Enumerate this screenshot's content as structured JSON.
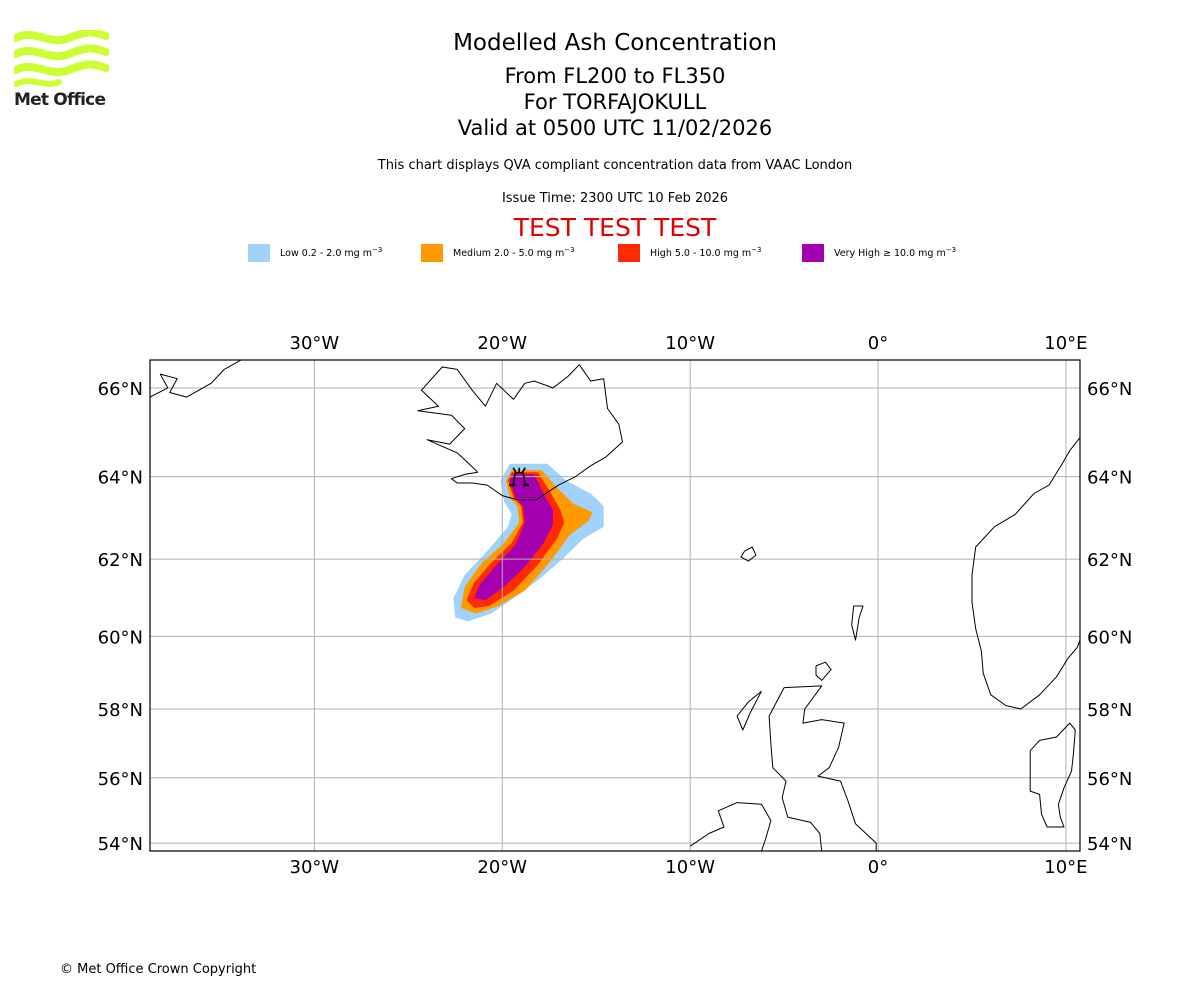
{
  "logo": {
    "text": "Met Office",
    "color": "#ccff33"
  },
  "header": {
    "title": "Modelled Ash Concentration",
    "levels": "From FL200 to FL350",
    "volcano": "For TORFAJOKULL",
    "valid": "Valid at 0500 UTC 11/02/2026",
    "description": "This chart displays QVA compliant concentration data from VAAC London",
    "issue_time": "Issue Time: 2300 UTC 10 Feb 2026",
    "test_banner": "TEST TEST TEST"
  },
  "legend": [
    {
      "name": "Low",
      "range": "Low 0.2 - 2.0 mg m",
      "unit_exp": "−3",
      "color": "#a0d2fa"
    },
    {
      "name": "Medium",
      "range": "Medium 2.0 - 5.0 mg m",
      "unit_exp": "−3",
      "color": "#ff9900"
    },
    {
      "name": "High",
      "range": "High 5.0 - 10.0 mg m",
      "unit_exp": "−3",
      "color": "#ff2a00"
    },
    {
      "name": "Very High",
      "range": "Very High  ≥  10.0 mg m",
      "unit_exp": "−3",
      "color": "#a500b0"
    }
  ],
  "footer": {
    "copyright": "© Met Office Crown Copyright"
  },
  "chart_data": {
    "type": "map",
    "projection": "mercator",
    "extent": {
      "lon": [
        -38.75,
        10.75
      ],
      "lat": [
        53.75,
        66.6
      ]
    },
    "grid": true,
    "x_ticks": [
      {
        "value": -30,
        "label": "30°W"
      },
      {
        "value": -20,
        "label": "20°W"
      },
      {
        "value": -10,
        "label": "10°W"
      },
      {
        "value": 0,
        "label": "0°"
      },
      {
        "value": 10,
        "label": "10°E"
      }
    ],
    "y_ticks": [
      {
        "value": 66,
        "label": "66°N"
      },
      {
        "value": 64,
        "label": "64°N"
      },
      {
        "value": 62,
        "label": "62°N"
      },
      {
        "value": 60,
        "label": "60°N"
      },
      {
        "value": 58,
        "label": "58°N"
      },
      {
        "value": 56,
        "label": "56°N"
      },
      {
        "value": 54,
        "label": "54°N"
      }
    ],
    "volcano": {
      "name": "TORFAJOKULL",
      "lon": -19.1,
      "lat": 63.9,
      "symbol": "volcano-icon"
    },
    "ash_levels": [
      {
        "level": "Low",
        "color": "#a0d2fa",
        "polygon": [
          [
            -19.6,
            64.3
          ],
          [
            -17.6,
            64.3
          ],
          [
            -16.6,
            63.9
          ],
          [
            -15.3,
            63.6
          ],
          [
            -14.6,
            63.3
          ],
          [
            -14.6,
            62.8
          ],
          [
            -15.7,
            62.5
          ],
          [
            -16.8,
            62.0
          ],
          [
            -18.0,
            61.5
          ],
          [
            -19.4,
            61.0
          ],
          [
            -20.6,
            60.6
          ],
          [
            -21.8,
            60.4
          ],
          [
            -22.5,
            60.5
          ],
          [
            -22.6,
            61.0
          ],
          [
            -22.0,
            61.6
          ],
          [
            -20.8,
            62.2
          ],
          [
            -19.7,
            62.8
          ],
          [
            -19.5,
            63.1
          ],
          [
            -19.9,
            63.4
          ],
          [
            -20.1,
            63.9
          ]
        ]
      },
      {
        "level": "Medium",
        "color": "#ff9900",
        "polygon": [
          [
            -19.5,
            64.15
          ],
          [
            -17.9,
            64.15
          ],
          [
            -17.0,
            63.7
          ],
          [
            -16.2,
            63.35
          ],
          [
            -15.2,
            63.15
          ],
          [
            -15.4,
            62.95
          ],
          [
            -16.4,
            62.6
          ],
          [
            -17.5,
            61.9
          ],
          [
            -18.8,
            61.2
          ],
          [
            -20.2,
            60.8
          ],
          [
            -21.4,
            60.6
          ],
          [
            -22.2,
            60.75
          ],
          [
            -22.0,
            61.3
          ],
          [
            -21.1,
            61.9
          ],
          [
            -19.9,
            62.4
          ],
          [
            -19.1,
            62.9
          ],
          [
            -19.2,
            63.3
          ],
          [
            -19.6,
            63.5
          ],
          [
            -19.8,
            63.9
          ]
        ]
      },
      {
        "level": "High",
        "color": "#ff2a00",
        "polygon": [
          [
            -19.5,
            64.1
          ],
          [
            -18.1,
            64.1
          ],
          [
            -17.4,
            63.6
          ],
          [
            -16.9,
            63.2
          ],
          [
            -16.7,
            62.9
          ],
          [
            -17.1,
            62.5
          ],
          [
            -18.2,
            61.8
          ],
          [
            -19.4,
            61.2
          ],
          [
            -20.7,
            60.8
          ],
          [
            -21.5,
            60.75
          ],
          [
            -21.9,
            60.95
          ],
          [
            -21.5,
            61.4
          ],
          [
            -20.6,
            61.9
          ],
          [
            -19.5,
            62.4
          ],
          [
            -18.9,
            62.9
          ],
          [
            -19.0,
            63.3
          ],
          [
            -19.4,
            63.5
          ],
          [
            -19.7,
            63.9
          ]
        ]
      },
      {
        "level": "Very High",
        "color": "#a500b0",
        "polygon": [
          [
            -19.4,
            64.05
          ],
          [
            -18.3,
            64.05
          ],
          [
            -17.8,
            63.6
          ],
          [
            -17.3,
            63.2
          ],
          [
            -17.3,
            62.85
          ],
          [
            -17.8,
            62.4
          ],
          [
            -18.8,
            61.8
          ],
          [
            -19.9,
            61.3
          ],
          [
            -20.9,
            60.95
          ],
          [
            -21.5,
            61.0
          ],
          [
            -21.2,
            61.35
          ],
          [
            -20.3,
            61.85
          ],
          [
            -19.3,
            62.35
          ],
          [
            -18.8,
            62.9
          ],
          [
            -18.9,
            63.3
          ],
          [
            -19.3,
            63.5
          ],
          [
            -19.6,
            63.9
          ]
        ]
      }
    ],
    "coastlines": [
      {
        "name": "Iceland",
        "points": [
          [
            -21.3,
            64.1
          ],
          [
            -22.0,
            64.05
          ],
          [
            -22.7,
            63.95
          ],
          [
            -22.4,
            63.85
          ],
          [
            -21.6,
            63.85
          ],
          [
            -20.8,
            63.8
          ],
          [
            -20.0,
            63.55
          ],
          [
            -19.2,
            63.45
          ],
          [
            -18.2,
            63.45
          ],
          [
            -17.0,
            63.8
          ],
          [
            -16.1,
            64.0
          ],
          [
            -15.3,
            64.25
          ],
          [
            -14.5,
            64.45
          ],
          [
            -13.6,
            64.8
          ],
          [
            -13.8,
            65.2
          ],
          [
            -14.4,
            65.55
          ],
          [
            -14.6,
            66.2
          ],
          [
            -15.3,
            66.15
          ],
          [
            -15.9,
            66.5
          ],
          [
            -16.5,
            66.25
          ],
          [
            -17.3,
            66.0
          ],
          [
            -18.3,
            66.15
          ],
          [
            -18.8,
            66.1
          ],
          [
            -19.4,
            65.75
          ],
          [
            -20.3,
            66.1
          ],
          [
            -20.9,
            65.6
          ],
          [
            -21.6,
            65.95
          ],
          [
            -22.4,
            66.4
          ],
          [
            -23.2,
            66.45
          ],
          [
            -24.3,
            65.95
          ],
          [
            -23.4,
            65.6
          ],
          [
            -24.5,
            65.5
          ],
          [
            -22.7,
            65.4
          ],
          [
            -22.0,
            65.1
          ],
          [
            -22.8,
            64.75
          ],
          [
            -24.0,
            64.85
          ],
          [
            -22.4,
            64.55
          ],
          [
            -21.9,
            64.35
          ],
          [
            -21.3,
            64.1
          ]
        ]
      },
      {
        "name": "Greenland-east",
        "points": [
          [
            -38.75,
            65.8
          ],
          [
            -37.8,
            66.0
          ],
          [
            -38.2,
            66.3
          ],
          [
            -37.3,
            66.2
          ],
          [
            -37.7,
            65.9
          ],
          [
            -36.8,
            65.8
          ],
          [
            -35.5,
            66.1
          ],
          [
            -34.8,
            66.4
          ],
          [
            -33.9,
            66.6
          ]
        ]
      },
      {
        "name": "Faroe",
        "points": [
          [
            -7.1,
            62.2
          ],
          [
            -6.7,
            62.3
          ],
          [
            -6.5,
            62.1
          ],
          [
            -6.9,
            61.95
          ],
          [
            -7.3,
            62.05
          ],
          [
            -7.1,
            62.2
          ]
        ]
      },
      {
        "name": "Shetland",
        "points": [
          [
            -1.3,
            60.8
          ],
          [
            -0.8,
            60.8
          ],
          [
            -1.0,
            60.5
          ],
          [
            -1.2,
            59.9
          ],
          [
            -1.4,
            60.3
          ],
          [
            -1.3,
            60.8
          ]
        ]
      },
      {
        "name": "Orkney",
        "points": [
          [
            -3.3,
            59.2
          ],
          [
            -2.8,
            59.3
          ],
          [
            -2.5,
            59.1
          ],
          [
            -3.0,
            58.8
          ],
          [
            -3.3,
            58.95
          ],
          [
            -3.3,
            59.2
          ]
        ]
      },
      {
        "name": "Scotland-England",
        "points": [
          [
            -5.0,
            58.6
          ],
          [
            -3.0,
            58.65
          ],
          [
            -3.9,
            58.0
          ],
          [
            -4.0,
            57.6
          ],
          [
            -3.0,
            57.7
          ],
          [
            -1.8,
            57.6
          ],
          [
            -2.1,
            56.9
          ],
          [
            -2.6,
            56.3
          ],
          [
            -3.2,
            56.05
          ],
          [
            -2.0,
            55.9
          ],
          [
            -1.6,
            55.3
          ],
          [
            -1.2,
            54.6
          ],
          [
            -0.1,
            54.0
          ],
          [
            -0.1,
            53.75
          ]
        ]
      },
      {
        "name": "Scotland-west",
        "points": [
          [
            -3.0,
            53.75
          ],
          [
            -3.1,
            54.3
          ],
          [
            -3.6,
            54.65
          ],
          [
            -4.8,
            54.8
          ],
          [
            -5.1,
            55.4
          ],
          [
            -4.9,
            55.9
          ],
          [
            -5.6,
            56.3
          ],
          [
            -5.7,
            57.0
          ],
          [
            -5.8,
            57.8
          ],
          [
            -5.0,
            58.6
          ]
        ]
      },
      {
        "name": "Ireland-north",
        "points": [
          [
            -10.0,
            53.9
          ],
          [
            -9.0,
            54.3
          ],
          [
            -8.2,
            54.5
          ],
          [
            -8.5,
            55.0
          ],
          [
            -7.5,
            55.25
          ],
          [
            -6.2,
            55.2
          ],
          [
            -5.7,
            54.7
          ],
          [
            -6.0,
            54.1
          ],
          [
            -6.2,
            53.75
          ]
        ]
      },
      {
        "name": "Outer-Hebrides",
        "points": [
          [
            -6.2,
            58.5
          ],
          [
            -6.9,
            58.2
          ],
          [
            -7.5,
            57.8
          ],
          [
            -7.2,
            57.4
          ],
          [
            -6.8,
            57.9
          ],
          [
            -6.2,
            58.5
          ]
        ]
      },
      {
        "name": "Norway",
        "points": [
          [
            10.75,
            64.9
          ],
          [
            10.2,
            64.6
          ],
          [
            9.8,
            64.3
          ],
          [
            9.1,
            63.8
          ],
          [
            8.3,
            63.6
          ],
          [
            7.3,
            63.1
          ],
          [
            6.2,
            62.8
          ],
          [
            5.2,
            62.3
          ],
          [
            5.0,
            61.6
          ],
          [
            5.0,
            60.9
          ],
          [
            5.2,
            60.2
          ],
          [
            5.5,
            59.6
          ],
          [
            5.6,
            59.0
          ],
          [
            6.0,
            58.4
          ],
          [
            6.8,
            58.1
          ],
          [
            7.6,
            58.0
          ],
          [
            8.6,
            58.4
          ],
          [
            9.5,
            58.9
          ],
          [
            10.1,
            59.4
          ],
          [
            10.6,
            59.7
          ],
          [
            10.75,
            59.9
          ]
        ]
      },
      {
        "name": "Denmark",
        "points": [
          [
            8.1,
            56.8
          ],
          [
            8.6,
            57.1
          ],
          [
            9.5,
            57.2
          ],
          [
            10.2,
            57.6
          ],
          [
            10.5,
            57.4
          ],
          [
            10.4,
            56.7
          ],
          [
            10.3,
            56.2
          ],
          [
            9.9,
            55.7
          ],
          [
            9.6,
            55.2
          ],
          [
            9.7,
            54.8
          ],
          [
            9.9,
            54.5
          ],
          [
            9.0,
            54.5
          ],
          [
            8.7,
            54.9
          ],
          [
            8.6,
            55.5
          ],
          [
            8.1,
            55.6
          ],
          [
            8.1,
            56.3
          ],
          [
            8.1,
            56.8
          ]
        ]
      },
      {
        "name": "Sweden-west",
        "points": [
          [
            10.75,
            58.9
          ],
          [
            10.9,
            58.3
          ],
          [
            10.75,
            57.8
          ]
        ]
      }
    ]
  }
}
